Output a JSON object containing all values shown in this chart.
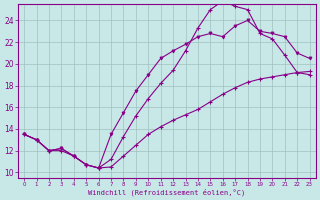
{
  "xlabel": "Windchill (Refroidissement éolien,°C)",
  "bg_color": "#c8e8e8",
  "grid_color": "#a0c0c0",
  "line_color": "#880088",
  "xlim": [
    -0.5,
    23.5
  ],
  "ylim": [
    9.5,
    25.5
  ],
  "yticks": [
    10,
    12,
    14,
    16,
    18,
    20,
    22,
    24
  ],
  "xticks": [
    0,
    1,
    2,
    3,
    4,
    5,
    6,
    7,
    8,
    9,
    10,
    11,
    12,
    13,
    14,
    15,
    16,
    17,
    18,
    19,
    20,
    21,
    22,
    23
  ],
  "line1_x": [
    0,
    1,
    2,
    3,
    4,
    5,
    6,
    7,
    8,
    9,
    10,
    11,
    12,
    13,
    14,
    15,
    16,
    17,
    18,
    19,
    20,
    21,
    22,
    23
  ],
  "line1_y": [
    13.5,
    13.0,
    12.0,
    12.2,
    11.5,
    10.7,
    10.4,
    11.2,
    13.3,
    15.2,
    16.8,
    18.2,
    19.4,
    21.2,
    23.3,
    25.0,
    25.8,
    25.3,
    25.0,
    22.8,
    22.3,
    20.8,
    19.2,
    19.0
  ],
  "line2_x": [
    0,
    1,
    2,
    3,
    4,
    5,
    6,
    7,
    8,
    9,
    10,
    11,
    12,
    13,
    14,
    15,
    16,
    17,
    18,
    19,
    20,
    21,
    22,
    23
  ],
  "line2_y": [
    13.5,
    13.0,
    12.0,
    12.2,
    11.5,
    10.7,
    10.4,
    13.5,
    15.5,
    17.5,
    19.0,
    20.5,
    21.2,
    21.8,
    22.5,
    22.8,
    22.5,
    23.5,
    24.0,
    23.0,
    22.8,
    22.5,
    21.0,
    20.5
  ],
  "line3_x": [
    0,
    1,
    2,
    3,
    4,
    5,
    6,
    7,
    8,
    9,
    10,
    11,
    12,
    13,
    14,
    15,
    16,
    17,
    18,
    19,
    20,
    21,
    22,
    23
  ],
  "line3_y": [
    13.5,
    13.0,
    12.0,
    12.0,
    11.5,
    10.7,
    10.4,
    10.5,
    11.5,
    12.5,
    13.5,
    14.2,
    14.8,
    15.3,
    15.8,
    16.5,
    17.2,
    17.8,
    18.3,
    18.6,
    18.8,
    19.0,
    19.2,
    19.3
  ]
}
